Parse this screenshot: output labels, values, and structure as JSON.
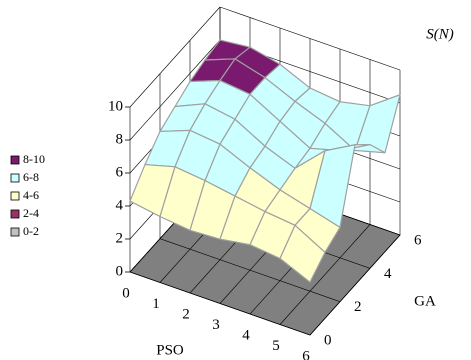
{
  "chart_data": {
    "type": "surface",
    "z_label": "S(N)",
    "x_label": "PSO",
    "y_label": "GA",
    "x": [
      0,
      1,
      2,
      3,
      4,
      5,
      6
    ],
    "y": [
      0,
      1,
      2,
      3,
      4,
      5,
      6
    ],
    "values": [
      [
        4.3,
        4.0,
        3.8,
        3.9,
        4.2,
        4.0,
        3.2
      ],
      [
        5.5,
        6.0,
        5.8,
        5.5,
        5.2,
        5.0,
        4.0
      ],
      [
        6.5,
        7.2,
        7.0,
        6.2,
        5.5,
        5.0,
        4.5
      ],
      [
        7.0,
        7.8,
        7.5,
        6.5,
        5.8,
        7.5,
        8.5
      ],
      [
        7.5,
        8.2,
        8.0,
        7.0,
        6.0,
        6.5,
        7.5
      ],
      [
        7.8,
        8.5,
        8.0,
        7.2,
        6.5,
        5.5,
        6.0
      ],
      [
        8.0,
        8.2,
        7.8,
        7.0,
        6.8,
        7.2,
        8.5
      ]
    ],
    "xlim": [
      0,
      6
    ],
    "xticks": [
      0,
      1,
      2,
      3,
      4,
      5,
      6
    ],
    "ylim": [
      0,
      6
    ],
    "yticks": [
      0,
      2,
      4,
      6
    ],
    "zlim": [
      0,
      10
    ],
    "zticks": [
      0,
      2,
      4,
      6,
      8,
      10
    ],
    "bands": [
      {
        "name": "8-10",
        "color": "#7a1a6e",
        "range": [
          8,
          10
        ]
      },
      {
        "name": "6-8",
        "color": "#ccffff",
        "range": [
          6,
          8
        ]
      },
      {
        "name": "4-6",
        "color": "#ffffcc",
        "range": [
          4,
          6
        ]
      },
      {
        "name": "2-4",
        "color": "#993366",
        "range": [
          2,
          4
        ]
      },
      {
        "name": "0-2",
        "color": "#c0c0c0",
        "range": [
          0,
          2
        ]
      }
    ]
  }
}
